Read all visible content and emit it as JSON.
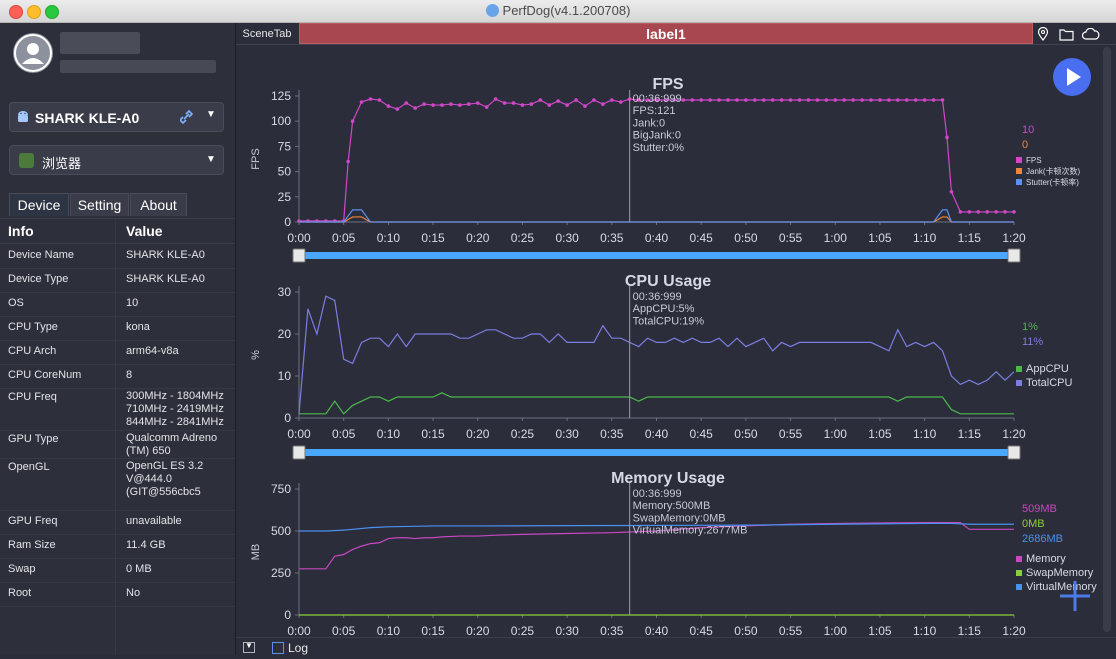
{
  "window": {
    "title": "PerfDog(v4.1.200708)"
  },
  "device_selector": {
    "label": "SHARK KLE-A0"
  },
  "app_selector": {
    "label": "浏览器"
  },
  "tabs": [
    "Device",
    "Setting",
    "About"
  ],
  "info_table": {
    "headers": [
      "Info",
      "Value"
    ],
    "rows": [
      {
        "k": "Device Name",
        "v": "SHARK KLE-A0"
      },
      {
        "k": "Device Type",
        "v": "SHARK KLE-A0"
      },
      {
        "k": "OS",
        "v": "10"
      },
      {
        "k": "CPU Type",
        "v": "kona"
      },
      {
        "k": "CPU Arch",
        "v": "arm64-v8a"
      },
      {
        "k": "CPU CoreNum",
        "v": "8"
      },
      {
        "k": "CPU Freq",
        "v": "300MHz - 1804MHz\n710MHz - 2419MHz\n844MHz - 2841MHz"
      },
      {
        "k": "GPU Type",
        "v": "Qualcomm Adreno\n(TM) 650"
      },
      {
        "k": "OpenGL",
        "v": "OpenGL ES 3.2\nV@444.0\n(GIT@556cbc5"
      },
      {
        "k": "GPU Freq",
        "v": "unavailable"
      },
      {
        "k": "Ram Size",
        "v": "11.4 GB"
      },
      {
        "k": "Swap",
        "v": "0 MB"
      },
      {
        "k": "Root",
        "v": "No"
      }
    ]
  },
  "scene": {
    "tab_label": "SceneTab",
    "label": "label1"
  },
  "bottom": {
    "log_label": "Log"
  },
  "colors": {
    "fps": "#d048c8",
    "jank": "#f0843a",
    "stutter": "#5b8ff0",
    "app_cpu": "#4cb84c",
    "total_cpu": "#7b7ee0",
    "memory": "#c848c0",
    "swap": "#8ad03a",
    "virtual": "#4a90f0",
    "play_button": "#4a6ef0"
  },
  "chart_data": [
    {
      "type": "line",
      "title": "FPS",
      "ylabel": "FPS",
      "ylim": [
        0,
        125
      ],
      "yticks": [
        "0",
        "25",
        "50",
        "75",
        "100",
        "125"
      ],
      "xticks": [
        "0:00",
        "0:05",
        "0:10",
        "0:15",
        "0:20",
        "0:25",
        "0:30",
        "0:35",
        "0:40",
        "0:45",
        "0:50",
        "0:55",
        "1:00",
        "1:05",
        "1:10",
        "1:15",
        "1:20"
      ],
      "cursor": {
        "time": "0:36.999",
        "lines": [
          "00:36:999",
          "FPS:121",
          "Jank:0",
          "BigJank:0",
          "Stutter:0%"
        ]
      },
      "current_values": [
        "10",
        "0"
      ],
      "legend": [
        "FPS",
        "Jank(卡顿次数)",
        "Stutter(卡顿率)"
      ],
      "series": [
        {
          "name": "FPS",
          "x": [
            0,
            1,
            2,
            3,
            4,
            5,
            5.5,
            6,
            7,
            8,
            9,
            10,
            11,
            12,
            13,
            14,
            15,
            16,
            17,
            18,
            19,
            20,
            21,
            22,
            23,
            24,
            25,
            26,
            27,
            28,
            29,
            30,
            31,
            32,
            33,
            34,
            35,
            36,
            37,
            38,
            39,
            40,
            41,
            42,
            43,
            44,
            45,
            46,
            47,
            48,
            49,
            50,
            51,
            52,
            53,
            54,
            55,
            56,
            57,
            58,
            59,
            60,
            61,
            62,
            63,
            64,
            65,
            66,
            67,
            68,
            69,
            70,
            71,
            72,
            72.5,
            73,
            74,
            75,
            76,
            77,
            78,
            79,
            80
          ],
          "y": [
            1,
            1,
            1,
            1,
            1,
            1,
            60,
            100,
            119,
            122,
            121,
            115,
            112,
            118,
            113,
            117,
            116,
            116,
            117,
            116,
            117,
            118,
            114,
            122,
            118,
            118,
            116,
            117,
            121,
            116,
            120,
            116,
            121,
            115,
            121,
            117,
            121,
            119,
            122,
            121,
            121,
            121,
            121,
            121,
            121,
            121,
            121,
            121,
            121,
            121,
            121,
            121,
            121,
            121,
            121,
            121,
            121,
            121,
            121,
            121,
            121,
            121,
            121,
            121,
            121,
            121,
            121,
            121,
            121,
            121,
            121,
            121,
            121,
            121,
            84,
            30,
            10,
            10,
            10,
            10,
            10,
            10,
            10
          ]
        },
        {
          "name": "Jank(卡顿次数)",
          "x": [
            0,
            5,
            6,
            6.5,
            7,
            8,
            71,
            72,
            72.5,
            73,
            80
          ],
          "y": [
            0,
            0,
            5,
            5,
            5,
            0,
            0,
            5,
            5,
            0,
            0
          ]
        },
        {
          "name": "Stutter(卡顿率)",
          "x": [
            0,
            5,
            6,
            6.5,
            7,
            8,
            71,
            72,
            72.5,
            73,
            80
          ],
          "y": [
            0,
            0,
            12,
            12,
            12,
            0,
            0,
            12,
            12,
            0,
            0
          ]
        }
      ]
    },
    {
      "type": "line",
      "title": "CPU Usage",
      "ylabel": "%",
      "ylim": [
        0,
        30
      ],
      "yticks": [
        "0",
        "10",
        "20",
        "30"
      ],
      "xticks": [
        "0:00",
        "0:05",
        "0:10",
        "0:15",
        "0:20",
        "0:25",
        "0:30",
        "0:35",
        "0:40",
        "0:45",
        "0:50",
        "0:55",
        "1:00",
        "1:05",
        "1:10",
        "1:15",
        "1:20"
      ],
      "cursor": {
        "time": "0:36.999",
        "lines": [
          "00:36:999",
          "AppCPU:5%",
          "TotalCPU:19%"
        ]
      },
      "current_values": [
        "1%",
        "11%"
      ],
      "legend": [
        "AppCPU",
        "TotalCPU"
      ],
      "series": [
        {
          "name": "AppCPU",
          "x": [
            0,
            1,
            2,
            3,
            4,
            5,
            6,
            7,
            8,
            9,
            10,
            11,
            12,
            13,
            14,
            15,
            16,
            17,
            18,
            19,
            20,
            21,
            22,
            23,
            24,
            25,
            26,
            27,
            28,
            29,
            30,
            31,
            32,
            33,
            34,
            35,
            36,
            37,
            38,
            39,
            40,
            41,
            42,
            43,
            44,
            45,
            46,
            47,
            48,
            49,
            50,
            51,
            52,
            53,
            54,
            55,
            56,
            57,
            58,
            59,
            60,
            61,
            62,
            63,
            64,
            65,
            66,
            67,
            68,
            69,
            70,
            71,
            72,
            73,
            74,
            75,
            76,
            77,
            78,
            79,
            80
          ],
          "y": [
            1,
            1,
            1,
            1,
            4,
            1,
            3,
            4,
            5,
            5,
            4,
            5,
            5,
            5,
            5,
            5,
            6,
            5,
            5,
            5,
            5,
            5,
            5,
            5,
            5,
            5,
            5,
            5,
            5,
            5,
            5,
            5,
            5,
            5,
            5,
            5,
            5,
            5,
            4,
            5,
            5,
            5,
            5,
            5,
            5,
            5,
            5,
            5,
            5,
            5,
            5,
            5,
            5,
            5,
            5,
            5,
            5,
            5,
            5,
            5,
            5,
            5,
            5,
            5,
            5,
            5,
            5,
            4,
            5,
            5,
            5,
            5,
            5,
            2,
            1,
            1,
            1,
            1,
            1,
            1,
            1
          ]
        },
        {
          "name": "TotalCPU",
          "x": [
            0,
            1,
            2,
            3,
            4,
            5,
            6,
            7,
            8,
            9,
            10,
            11,
            12,
            13,
            14,
            15,
            16,
            17,
            18,
            19,
            20,
            21,
            22,
            23,
            24,
            25,
            26,
            27,
            28,
            29,
            30,
            31,
            32,
            33,
            34,
            35,
            36,
            37,
            38,
            39,
            40,
            41,
            42,
            43,
            44,
            45,
            46,
            47,
            48,
            49,
            50,
            51,
            52,
            53,
            54,
            55,
            56,
            57,
            58,
            59,
            60,
            61,
            62,
            63,
            64,
            65,
            66,
            67,
            68,
            69,
            70,
            71,
            72,
            73,
            74,
            75,
            76,
            77,
            78,
            79,
            80
          ],
          "y": [
            1,
            26,
            20,
            29,
            28,
            14,
            13,
            18,
            19,
            19,
            17,
            20,
            17,
            20,
            20,
            20,
            20,
            20,
            19,
            19,
            20,
            21,
            21,
            20,
            19,
            19,
            20,
            20,
            18,
            20,
            18,
            18,
            18,
            18,
            22,
            19,
            19,
            18,
            17,
            19,
            18,
            18,
            19,
            18,
            19,
            18,
            18,
            19,
            17,
            19,
            17,
            18,
            19,
            16,
            18,
            17,
            18,
            18,
            18,
            18,
            18,
            18,
            18,
            18,
            18,
            17,
            16,
            21,
            17,
            18,
            17,
            18,
            16,
            10,
            8,
            9,
            8,
            9,
            11,
            9,
            11
          ]
        }
      ]
    },
    {
      "type": "line",
      "title": "Memory Usage",
      "ylabel": "MB",
      "ylim": [
        0,
        750
      ],
      "yticks": [
        "0",
        "250",
        "500",
        "750"
      ],
      "xticks": [
        "0:00",
        "0:05",
        "0:10",
        "0:15",
        "0:20",
        "0:25",
        "0:30",
        "0:35",
        "0:40",
        "0:45",
        "0:50",
        "0:55",
        "1:00",
        "1:05",
        "1:10",
        "1:15",
        "1:20"
      ],
      "cursor": {
        "time": "0:36.999",
        "lines": [
          "00:36:999",
          "Memory:500MB",
          "SwapMemory:0MB",
          "VirtualMemory:2677MB"
        ]
      },
      "current_values": [
        "509MB",
        "0MB",
        "2686MB"
      ],
      "legend": [
        "Memory",
        "SwapMemory",
        "VirtualMemory"
      ],
      "series": [
        {
          "name": "Memory",
          "x": [
            0,
            1,
            2,
            3,
            4,
            5,
            6,
            7,
            8,
            9,
            10,
            11,
            12,
            13,
            14,
            15,
            16,
            18,
            20,
            22,
            25,
            30,
            35,
            40,
            45,
            50,
            55,
            60,
            65,
            70,
            72,
            73,
            74,
            75,
            76,
            80
          ],
          "y": [
            275,
            275,
            275,
            275,
            350,
            360,
            390,
            410,
            425,
            430,
            455,
            460,
            460,
            455,
            460,
            460,
            465,
            470,
            470,
            475,
            480,
            485,
            490,
            500,
            520,
            530,
            540,
            545,
            548,
            550,
            550,
            550,
            550,
            510,
            510,
            510
          ]
        },
        {
          "name": "SwapMemory",
          "x": [
            0,
            80
          ],
          "y": [
            0,
            0
          ]
        },
        {
          "name": "VirtualMemory",
          "x": [
            0,
            3,
            5,
            8,
            10,
            15,
            20,
            30,
            40,
            50,
            60,
            70,
            72,
            73,
            75,
            80
          ],
          "y": [
            500,
            500,
            505,
            520,
            525,
            530,
            530,
            532,
            533,
            535,
            540,
            545,
            545,
            545,
            540,
            540
          ]
        }
      ]
    }
  ]
}
